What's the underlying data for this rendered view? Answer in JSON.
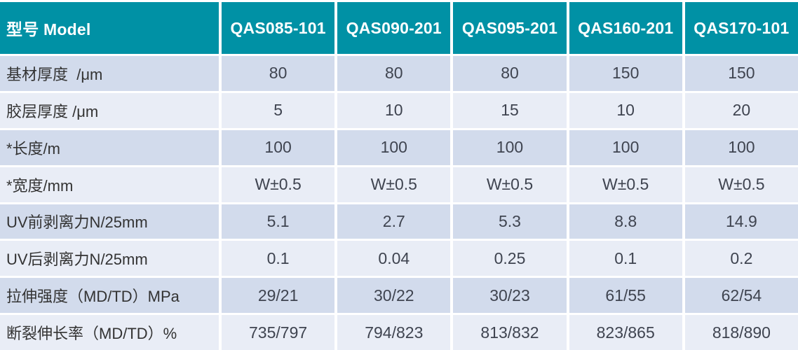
{
  "chart_data": {
    "type": "table",
    "header": [
      "型号 Model",
      "QAS085-101",
      "QAS090-201",
      "QAS095-201",
      "QAS160-201",
      "QAS170-101"
    ],
    "rows": [
      {
        "label": "基材厚度  /μm",
        "values": [
          "80",
          "80",
          "80",
          "150",
          "150"
        ]
      },
      {
        "label": "胶层厚度 /μm",
        "values": [
          "5",
          "10",
          "15",
          "10",
          "20"
        ]
      },
      {
        "label": "*长度/m",
        "values": [
          "100",
          "100",
          "100",
          "100",
          "100"
        ]
      },
      {
        "label": "*宽度/mm",
        "values": [
          "W±0.5",
          "W±0.5",
          "W±0.5",
          "W±0.5",
          "W±0.5"
        ]
      },
      {
        "label": "UV前剥离力N/25mm",
        "values": [
          "5.1",
          "2.7",
          "5.3",
          "8.8",
          "14.9"
        ]
      },
      {
        "label": "UV后剥离力N/25mm",
        "values": [
          "0.1",
          "0.04",
          "0.25",
          "0.1",
          "0.2"
        ]
      },
      {
        "label": "拉伸强度（MD/TD）MPa",
        "values": [
          "29/21",
          "30/22",
          "30/23",
          "61/55",
          "62/54"
        ]
      },
      {
        "label": "断裂伸长率（MD/TD）%",
        "values": [
          "735/797",
          "794/823",
          "813/832",
          "823/865",
          "818/890"
        ]
      }
    ]
  },
  "style": {
    "header_bg": "#0091a5",
    "header_text": "#ffffff",
    "row_odd_bg": "#d2dbec",
    "row_even_bg": "#e9edf6",
    "label_text": "#333333",
    "value_text": "#3f4450"
  }
}
